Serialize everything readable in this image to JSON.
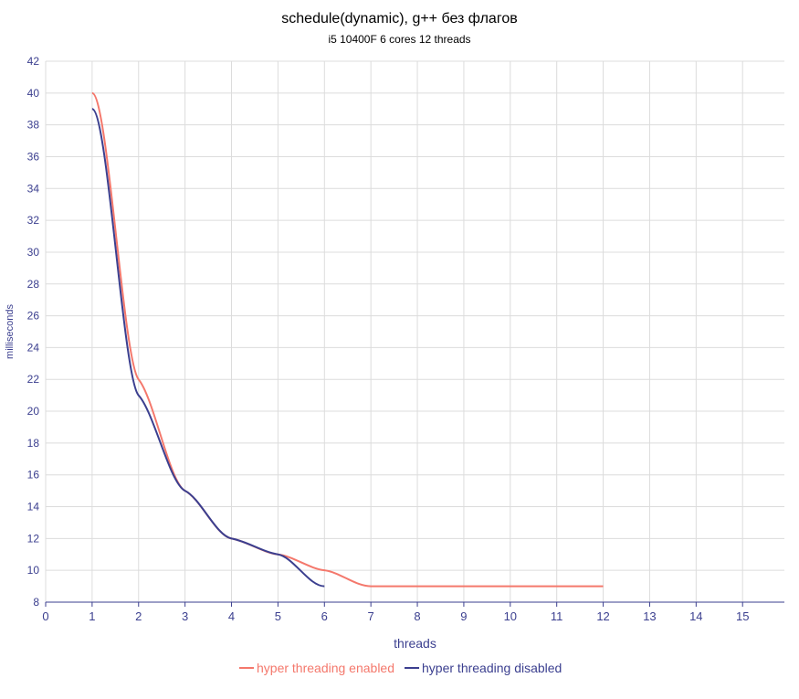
{
  "chart_data": {
    "type": "line",
    "title": "schedule(dynamic), g++ без флагов",
    "subtitle": "i5 10400F 6 cores 12 threads",
    "xlabel": "threads",
    "ylabel": "milliseconds",
    "xlim": [
      0,
      15.9
    ],
    "ylim": [
      8,
      42
    ],
    "xticks": [
      0,
      1,
      2,
      3,
      4,
      5,
      6,
      7,
      8,
      9,
      10,
      11,
      12,
      13,
      14,
      15
    ],
    "yticks": [
      8,
      10,
      12,
      14,
      16,
      18,
      20,
      22,
      24,
      26,
      28,
      30,
      32,
      34,
      36,
      38,
      40,
      42
    ],
    "grid": true,
    "legend_position": "bottom",
    "series": [
      {
        "name": "hyper threading enabled",
        "color": "#f4786c",
        "x": [
          1,
          2,
          3,
          4,
          5,
          6,
          7,
          8,
          9,
          10,
          11,
          12
        ],
        "y": [
          40,
          22,
          15,
          12,
          11,
          10,
          9,
          9,
          9,
          9,
          9,
          9
        ]
      },
      {
        "name": "hyper threading disabled",
        "color": "#3b3f8f",
        "x": [
          1,
          2,
          3,
          4,
          5,
          6
        ],
        "y": [
          39,
          21,
          15,
          12,
          11,
          9
        ]
      }
    ]
  }
}
